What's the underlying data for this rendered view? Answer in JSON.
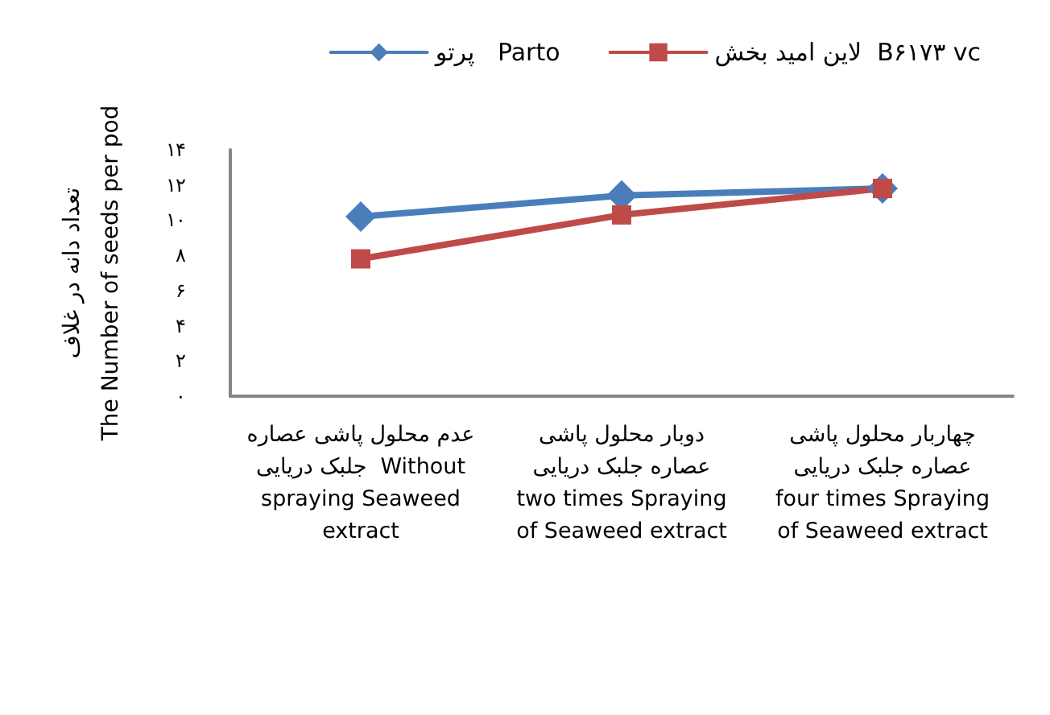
{
  "chart_data": {
    "type": "line",
    "ylabel": "تعداد دانه در غلاف\nThe Number of seeds per pod",
    "categories": [
      "عدم محلول پاشی عصاره\nجلبک دریایی  Without\nspraying Seaweed\nextract",
      "دوبار محلول پاشی\nعصاره جلبک دریایی\ntwo times Spraying\nof Seaweed extract",
      "چهاربار محلول پاشی\nعصاره جلبک دریایی\nfour times Spraying\nof Seaweed extract"
    ],
    "series": [
      {
        "name": "پرتو   Parto",
        "color": "#4a7ebb",
        "marker": "diamond",
        "values": [
          10.2,
          11.4,
          11.8
        ]
      },
      {
        "name": "لاین امید بخش  B۶۱۷۳ vc",
        "color": "#be4b48",
        "marker": "square",
        "values": [
          7.8,
          10.3,
          11.8
        ]
      }
    ],
    "ylim": [
      0,
      14
    ],
    "yticks": [
      {
        "value": 0,
        "label": "۰"
      },
      {
        "value": 2,
        "label": "۲"
      },
      {
        "value": 4,
        "label": "۴"
      },
      {
        "value": 6,
        "label": "۶"
      },
      {
        "value": 8,
        "label": "۸"
      },
      {
        "value": 10,
        "label": "۱۰"
      },
      {
        "value": 12,
        "label": "۱۲"
      },
      {
        "value": 14,
        "label": "۱۴"
      }
    ],
    "grid": false,
    "legend": "top right",
    "line_style": "solid"
  }
}
